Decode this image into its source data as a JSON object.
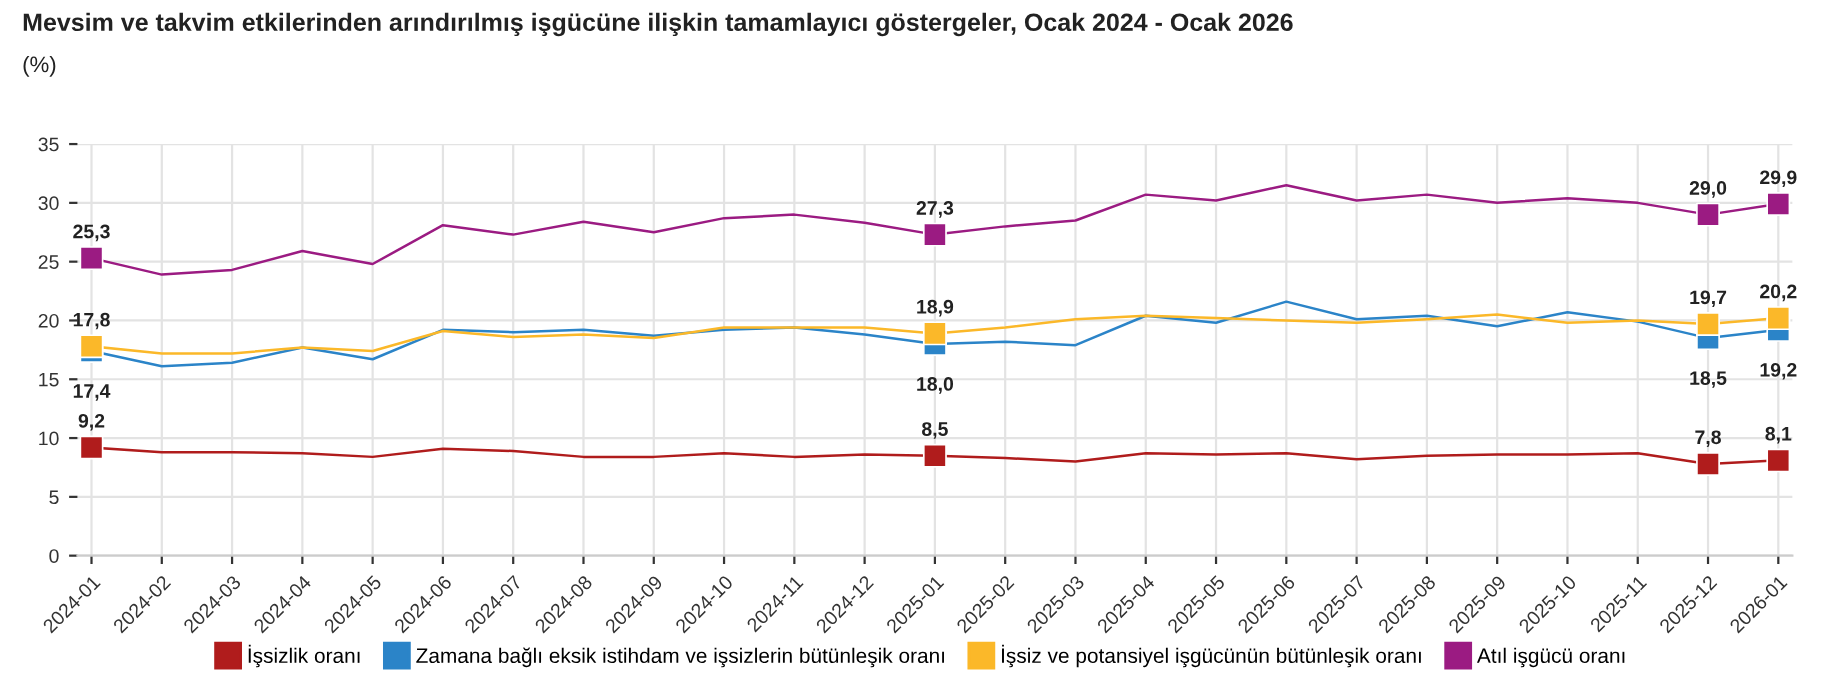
{
  "chart_data": {
    "type": "line",
    "title": "Mevsim ve takvim etkilerinden arındırılmış işgücüne ilişkin tamamlayıcı göstergeler, Ocak 2024 - Ocak 2026",
    "ylabel": "(%)",
    "categories": [
      "2024-01",
      "2024-02",
      "2024-03",
      "2024-04",
      "2024-05",
      "2024-06",
      "2024-07",
      "2024-08",
      "2024-09",
      "2024-10",
      "2024-11",
      "2024-12",
      "2025-01",
      "2025-02",
      "2025-03",
      "2025-04",
      "2025-05",
      "2025-06",
      "2025-07",
      "2025-08",
      "2025-09",
      "2025-10",
      "2025-11",
      "2025-12",
      "2026-01"
    ],
    "series": [
      {
        "name": "İşsizlik oranı",
        "color": "#b01c1c",
        "values": [
          9.2,
          8.8,
          8.8,
          8.7,
          8.4,
          9.1,
          8.9,
          8.4,
          8.4,
          8.7,
          8.4,
          8.6,
          8.5,
          8.3,
          8.0,
          8.7,
          8.6,
          8.7,
          8.2,
          8.5,
          8.6,
          8.6,
          8.7,
          7.8,
          8.1
        ],
        "value_labels": [
          "9,2",
          null,
          null,
          null,
          null,
          null,
          null,
          null,
          null,
          null,
          null,
          null,
          "8,5",
          null,
          null,
          null,
          null,
          null,
          null,
          null,
          null,
          null,
          null,
          "7,8",
          "8,1"
        ]
      },
      {
        "name": "Zamana bağlı eksik istihdam ve işsizlerin bütünleşik oranı",
        "color": "#2b84c8",
        "values": [
          17.4,
          16.1,
          16.4,
          17.7,
          16.7,
          19.2,
          19.0,
          19.2,
          18.7,
          19.2,
          19.4,
          18.8,
          18.0,
          18.2,
          17.9,
          20.4,
          19.8,
          21.6,
          20.1,
          20.4,
          19.5,
          20.7,
          19.9,
          18.5,
          19.2
        ],
        "value_labels": [
          "17,4",
          null,
          null,
          null,
          null,
          null,
          null,
          null,
          null,
          null,
          null,
          null,
          "18,0",
          null,
          null,
          null,
          null,
          null,
          null,
          null,
          null,
          null,
          null,
          "18,5",
          "19,2"
        ]
      },
      {
        "name": "İşsiz ve potansiyel işgücünün bütünleşik oranı",
        "color": "#fbb829",
        "values": [
          17.8,
          17.2,
          17.2,
          17.7,
          17.4,
          19.1,
          18.6,
          18.8,
          18.5,
          19.4,
          19.4,
          19.4,
          18.9,
          19.4,
          20.1,
          20.4,
          20.2,
          20.0,
          19.8,
          20.1,
          20.5,
          19.8,
          20.0,
          19.7,
          20.2
        ],
        "value_labels": [
          "17,8",
          null,
          null,
          null,
          null,
          null,
          null,
          null,
          null,
          null,
          null,
          null,
          "18,9",
          null,
          null,
          null,
          null,
          null,
          null,
          null,
          null,
          null,
          null,
          "19,7",
          "20,2"
        ]
      },
      {
        "name": "Atıl işgücü oranı",
        "color": "#9b1b82",
        "values": [
          25.3,
          23.9,
          24.3,
          25.9,
          24.8,
          28.1,
          27.3,
          28.4,
          27.5,
          28.7,
          29.0,
          28.3,
          27.3,
          28.0,
          28.5,
          30.7,
          30.2,
          31.5,
          30.2,
          30.7,
          30.0,
          30.4,
          30.0,
          29.0,
          29.9
        ],
        "value_labels": [
          "25,3",
          null,
          null,
          null,
          null,
          null,
          null,
          null,
          null,
          null,
          null,
          null,
          "27,3",
          null,
          null,
          null,
          null,
          null,
          null,
          null,
          null,
          null,
          null,
          "29,0",
          "29,9"
        ]
      }
    ],
    "ylim": [
      0,
      35
    ],
    "yticks": [
      0,
      5,
      10,
      15,
      20,
      25,
      30,
      35
    ],
    "grid": true,
    "legend": "bottom",
    "line_style": "solid"
  }
}
